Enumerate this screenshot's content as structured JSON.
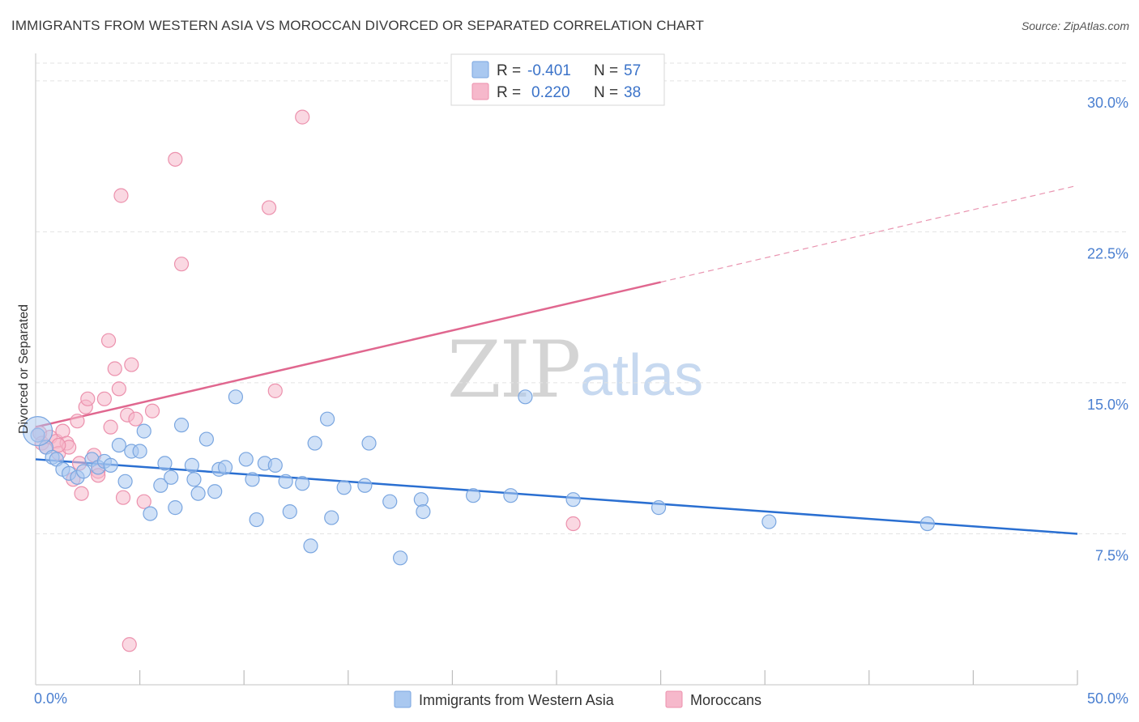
{
  "header": {
    "title": "IMMIGRANTS FROM WESTERN ASIA VS MOROCCAN DIVORCED OR SEPARATED CORRELATION CHART",
    "source": "Source: ZipAtlas.com"
  },
  "watermark": {
    "zip": "ZIP",
    "atlas": "atlas"
  },
  "colors": {
    "blue_fill": "#a9c8f0",
    "blue_stroke": "#7aa6e0",
    "blue_line": "#2a6fd1",
    "pink_fill": "#f6b8cb",
    "pink_stroke": "#ec91ad",
    "pink_line": "#e0678f",
    "tick_text": "#4a7fd0",
    "grid": "#e3e3e3"
  },
  "legend": {
    "rows": [
      {
        "r_label": "R =",
        "r_value": "-0.401",
        "n_label": "N =",
        "n_value": "57"
      },
      {
        "r_label": "R =",
        "r_value": "0.220",
        "n_label": "N =",
        "n_value": "38"
      }
    ]
  },
  "chart_data": {
    "type": "scatter",
    "title": "IMMIGRANTS FROM WESTERN ASIA VS MOROCCAN DIVORCED OR SEPARATED CORRELATION CHART",
    "xlabel": "",
    "ylabel": "Divorced or Separated",
    "xlim": [
      0,
      50
    ],
    "ylim": [
      0,
      31.2
    ],
    "x_tick_labels": [
      {
        "value": 0,
        "label": "0.0%"
      },
      {
        "value": 50,
        "label": "50.0%"
      }
    ],
    "x_minor_ticks": [
      5,
      10,
      15,
      20,
      25,
      30,
      35,
      40,
      45,
      50
    ],
    "y_ticks": [
      {
        "value": 7.5,
        "label": "7.5%"
      },
      {
        "value": 15.0,
        "label": "15.0%"
      },
      {
        "value": 22.5,
        "label": "22.5%"
      },
      {
        "value": 30.0,
        "label": "30.0%"
      }
    ],
    "grid": true,
    "legend_position": "top-center",
    "series": [
      {
        "name": "Immigrants from Western Asia",
        "color": "#a9c8f0",
        "R": -0.401,
        "N": 57,
        "trend": {
          "x_start": 0,
          "y_start": 11.2,
          "x_end": 50,
          "y_end": 7.5,
          "solid_until": 50
        },
        "points": [
          [
            0.1,
            12.4
          ],
          [
            0.5,
            11.8
          ],
          [
            0.8,
            11.3
          ],
          [
            1.0,
            11.2
          ],
          [
            1.3,
            10.7
          ],
          [
            1.6,
            10.5
          ],
          [
            2.0,
            10.3
          ],
          [
            2.3,
            10.6
          ],
          [
            2.7,
            11.2
          ],
          [
            3.0,
            10.8
          ],
          [
            3.3,
            11.1
          ],
          [
            3.6,
            10.9
          ],
          [
            4.0,
            11.9
          ],
          [
            4.3,
            10.1
          ],
          [
            4.6,
            11.6
          ],
          [
            5.0,
            11.6
          ],
          [
            5.2,
            12.6
          ],
          [
            5.5,
            8.5
          ],
          [
            6.0,
            9.9
          ],
          [
            6.2,
            11.0
          ],
          [
            6.5,
            10.3
          ],
          [
            6.7,
            8.8
          ],
          [
            7.0,
            12.9
          ],
          [
            7.5,
            10.9
          ],
          [
            7.6,
            10.2
          ],
          [
            7.8,
            9.5
          ],
          [
            8.2,
            12.2
          ],
          [
            8.6,
            9.6
          ],
          [
            8.8,
            10.7
          ],
          [
            9.1,
            10.8
          ],
          [
            9.6,
            14.3
          ],
          [
            10.1,
            11.2
          ],
          [
            10.4,
            10.2
          ],
          [
            10.6,
            8.2
          ],
          [
            11.0,
            11.0
          ],
          [
            11.5,
            10.9
          ],
          [
            12.0,
            10.1
          ],
          [
            12.2,
            8.6
          ],
          [
            12.8,
            10.0
          ],
          [
            13.2,
            6.9
          ],
          [
            13.4,
            12.0
          ],
          [
            14.0,
            13.2
          ],
          [
            14.2,
            8.3
          ],
          [
            14.8,
            9.8
          ],
          [
            15.8,
            9.9
          ],
          [
            16.0,
            12.0
          ],
          [
            17.0,
            9.1
          ],
          [
            17.5,
            6.3
          ],
          [
            18.5,
            9.2
          ],
          [
            18.6,
            8.6
          ],
          [
            21.0,
            9.4
          ],
          [
            22.8,
            9.4
          ],
          [
            23.5,
            14.3
          ],
          [
            25.8,
            9.2
          ],
          [
            29.9,
            8.8
          ],
          [
            35.2,
            8.1
          ],
          [
            42.8,
            8.0
          ]
        ]
      },
      {
        "name": "Moroccans",
        "color": "#f6b8cb",
        "R": 0.22,
        "N": 38,
        "trend": {
          "x_start": 0,
          "y_start": 12.8,
          "x_end": 50,
          "y_end": 24.8,
          "solid_until": 30
        },
        "points": [
          [
            0.2,
            12.5
          ],
          [
            0.3,
            12.0
          ],
          [
            0.5,
            11.8
          ],
          [
            0.7,
            12.3
          ],
          [
            1.0,
            12.1
          ],
          [
            1.1,
            11.5
          ],
          [
            1.3,
            12.6
          ],
          [
            1.5,
            12.0
          ],
          [
            1.6,
            11.8
          ],
          [
            1.8,
            10.2
          ],
          [
            2.0,
            13.1
          ],
          [
            2.2,
            9.5
          ],
          [
            2.4,
            13.8
          ],
          [
            2.5,
            14.2
          ],
          [
            2.8,
            11.4
          ],
          [
            3.0,
            10.6
          ],
          [
            3.3,
            14.2
          ],
          [
            3.5,
            17.1
          ],
          [
            3.6,
            12.8
          ],
          [
            3.8,
            15.7
          ],
          [
            4.0,
            14.7
          ],
          [
            4.1,
            24.3
          ],
          [
            4.2,
            9.3
          ],
          [
            4.4,
            13.4
          ],
          [
            4.6,
            15.9
          ],
          [
            4.8,
            13.2
          ],
          [
            5.2,
            9.1
          ],
          [
            5.6,
            13.6
          ],
          [
            6.7,
            26.1
          ],
          [
            7.0,
            20.9
          ],
          [
            11.2,
            23.7
          ],
          [
            11.5,
            14.6
          ],
          [
            12.8,
            28.2
          ],
          [
            3.0,
            10.4
          ],
          [
            25.8,
            8.0
          ],
          [
            4.5,
            2.0
          ],
          [
            1.1,
            11.9
          ],
          [
            2.1,
            11.0
          ]
        ]
      }
    ]
  }
}
